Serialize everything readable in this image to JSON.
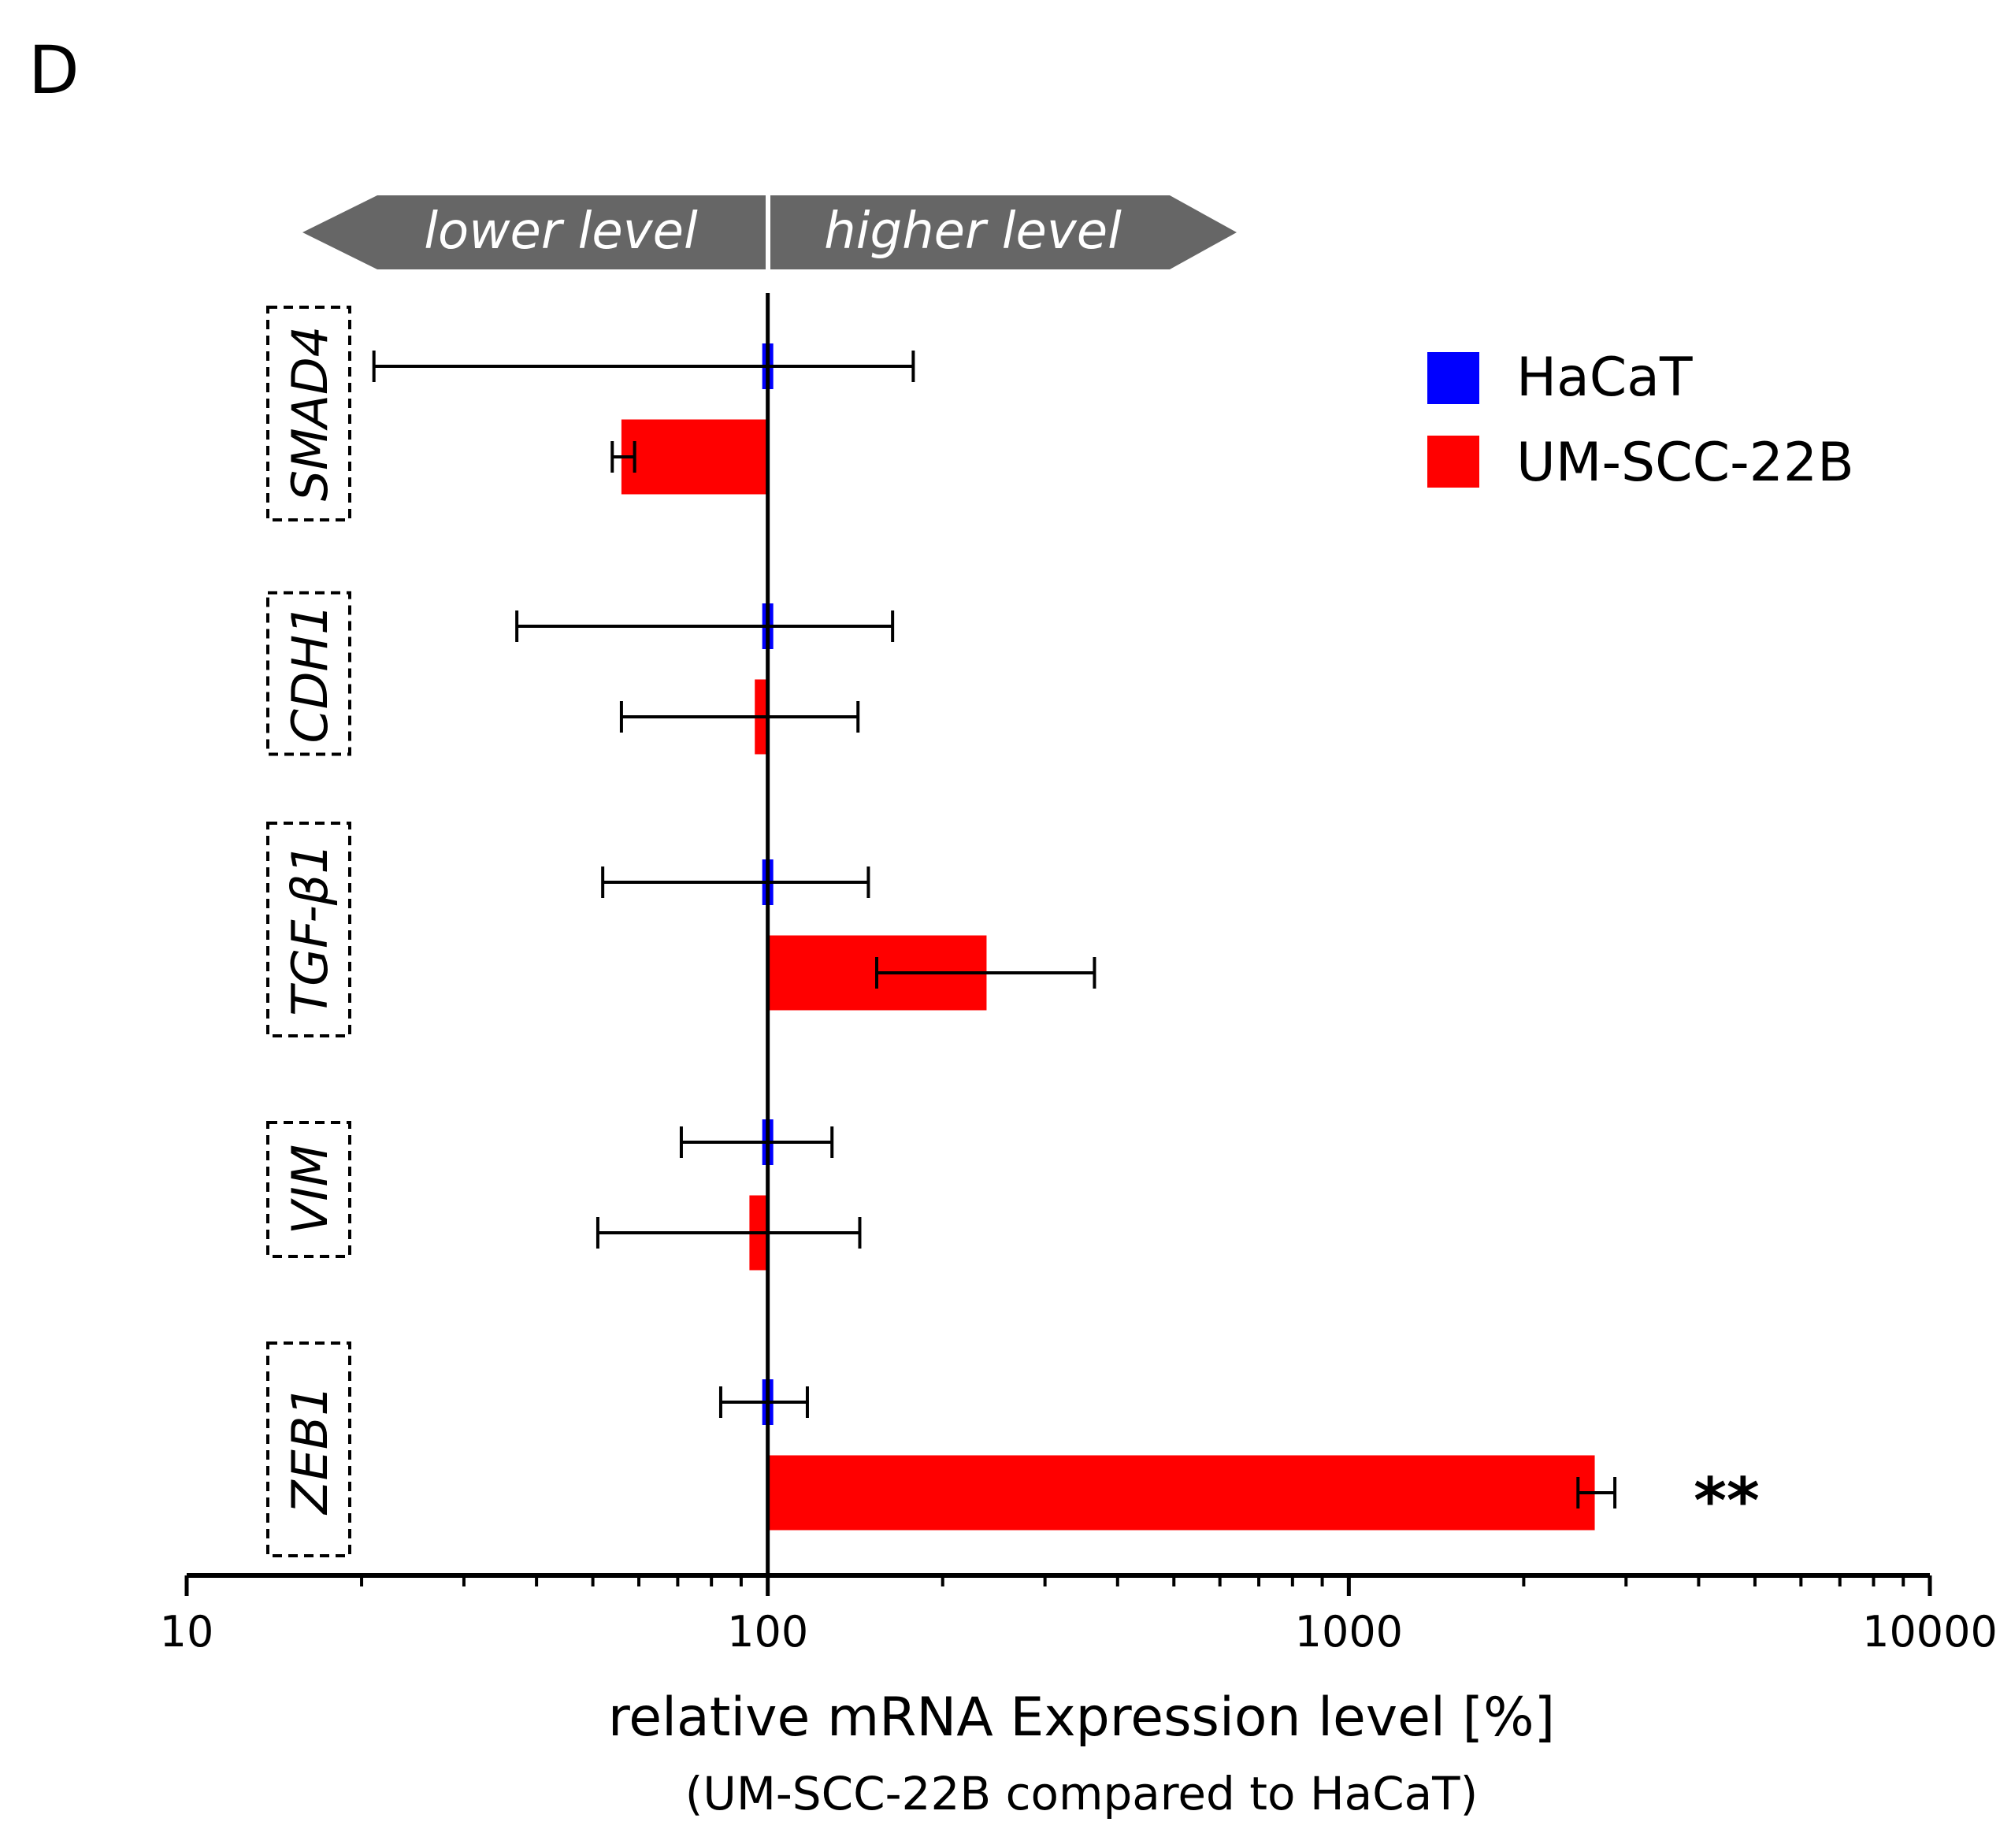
{
  "panel_label": "D",
  "direction_arrows": {
    "left": "lower level",
    "right": "higher level",
    "color": "#666666"
  },
  "chart_data": {
    "type": "bar",
    "orientation": "horizontal",
    "x_scale": "log",
    "xlim": [
      10,
      10000
    ],
    "x_ticks": [
      {
        "value": 10,
        "label": "10"
      },
      {
        "value": 100,
        "label": "100"
      },
      {
        "value": 1000,
        "label": "1000"
      },
      {
        "value": 10000,
        "label": "10000"
      }
    ],
    "reference_value": 100,
    "xlabel": "relative mRNA Expression level [%]",
    "xlabel_sub": "(UM-SCC-22B compared to HaCaT)",
    "legend": {
      "position": "top-right",
      "entries": [
        {
          "name": "HaCaT",
          "color": "#0000ff"
        },
        {
          "name": "UM-SCC-22B",
          "color": "#ff0000"
        }
      ]
    },
    "categories": [
      "SMAD4",
      "CDH1",
      "TGF-β1",
      "VIM",
      "ZEB1"
    ],
    "series": [
      {
        "name": "HaCaT",
        "color": "#0000ff",
        "values": [
          100,
          100,
          100,
          100,
          100
        ],
        "error_low": [
          21,
          37,
          52,
          71,
          83
        ],
        "error_high": [
          178,
          164,
          149,
          129,
          117
        ]
      },
      {
        "name": "UM-SCC-22B",
        "color": "#ff0000",
        "values": [
          56,
          95,
          238,
          93,
          2650
        ],
        "error_low": [
          54,
          56,
          154,
          51,
          2480
        ],
        "error_high": [
          59,
          143,
          365,
          144,
          2870
        ]
      }
    ],
    "annotations": [
      {
        "category": "ZEB1",
        "series": "UM-SCC-22B",
        "text": "**"
      }
    ]
  }
}
